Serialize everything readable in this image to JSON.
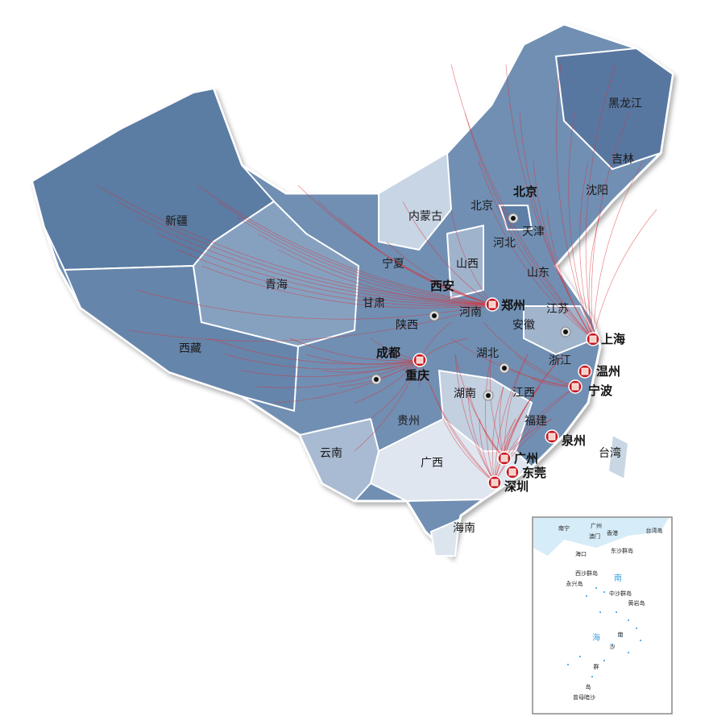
{
  "map": {
    "colors": {
      "land_dark": "#5f80a6",
      "land_mid": "#7f9cbc",
      "land_light": "#b4c5d8",
      "land_pale": "#e6ecf3",
      "border": "#ffffff",
      "route": "#d8343a",
      "hub": "#c8181e"
    },
    "provinces": [
      "新疆",
      "西藏",
      "青海",
      "甘肃",
      "内蒙古",
      "宁夏",
      "山西",
      "河北",
      "北京",
      "天津",
      "山东",
      "河南",
      "陕西",
      "江苏",
      "安徽",
      "湖北",
      "浙江",
      "江西",
      "湖南",
      "贵州",
      "云南",
      "广西",
      "福建",
      "台湾",
      "海南",
      "黑龙江",
      "吉林",
      "沈阳"
    ],
    "hubs": [
      "郑州",
      "上海",
      "成都",
      "重庆",
      "温州",
      "宁波",
      "泉州",
      "广州",
      "东莞",
      "深圳",
      "西安",
      "北京"
    ],
    "inset": {
      "labels": [
        "南宁",
        "广州",
        "澳门",
        "香港",
        "台湾岛",
        "海口",
        "东沙群岛",
        "西沙群岛",
        "永兴岛",
        "中沙群岛",
        "黄岩岛",
        "南",
        "海",
        "南",
        "沙",
        "群",
        "岛",
        "曾母暗沙"
      ]
    }
  }
}
